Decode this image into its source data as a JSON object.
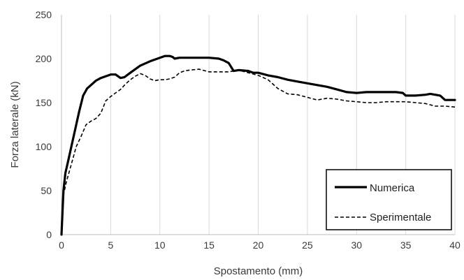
{
  "chart_data": {
    "type": "line",
    "xlabel": "Spostamento (mm)",
    "ylabel": "Forza laterale (kN)",
    "xlim": [
      0,
      40
    ],
    "ylim": [
      0,
      250
    ],
    "xticks": [
      "0",
      "5",
      "10",
      "15",
      "20",
      "25",
      "30",
      "35",
      "40"
    ],
    "yticks": [
      "0",
      "50",
      "100",
      "150",
      "200",
      "250"
    ],
    "grid": "vertical",
    "legend_position": "bottom-right",
    "series": [
      {
        "name": "Numerica",
        "style": "solid",
        "color": "#000000",
        "x": [
          0,
          0.2,
          0.4,
          0.7,
          1.0,
          1.4,
          1.8,
          2.2,
          2.6,
          3.0,
          3.5,
          4.0,
          4.5,
          5.0,
          5.5,
          6.0,
          6.4,
          7.0,
          7.5,
          8.0,
          9.0,
          10.0,
          10.5,
          11.0,
          11.3,
          11.5,
          12.0,
          13.0,
          14.0,
          15.0,
          16.0,
          16.5,
          17.0,
          17.5,
          18.0,
          19.0,
          19.5,
          20.0,
          21.0,
          22.0,
          23.0,
          24.0,
          25.0,
          26.0,
          27.0,
          28.0,
          29.0,
          30.0,
          31.0,
          32.0,
          33.0,
          34.0,
          34.7,
          35.0,
          36.0,
          37.0,
          37.5,
          38.0,
          38.5,
          39.0,
          40.0
        ],
        "y": [
          0,
          50,
          70,
          85,
          100,
          120,
          140,
          158,
          166,
          170,
          175,
          178,
          180,
          182,
          182,
          178,
          179,
          184,
          188,
          192,
          197,
          201,
          203,
          203,
          202,
          200,
          201,
          201,
          201,
          201,
          200,
          198,
          195,
          186,
          187,
          186,
          184,
          184,
          181,
          179,
          176,
          174,
          172,
          170,
          168,
          165,
          162,
          161,
          162,
          162,
          162,
          162,
          161,
          158,
          158,
          159,
          160,
          159,
          158,
          153,
          153
        ]
      },
      {
        "name": "Sperimentale",
        "style": "dashed",
        "color": "#000000",
        "x": [
          0,
          0.2,
          0.5,
          1.0,
          1.5,
          2.0,
          2.5,
          3.0,
          3.5,
          4.0,
          4.5,
          5.0,
          5.5,
          6.0,
          6.5,
          7.0,
          7.5,
          8.0,
          8.5,
          9.0,
          9.5,
          10.0,
          10.5,
          11.0,
          11.5,
          12.0,
          12.5,
          13.0,
          14.0,
          15.0,
          16.0,
          17.0,
          18.0,
          19.0,
          20.0,
          21.0,
          22.0,
          23.0,
          24.0,
          25.0,
          26.0,
          27.0,
          28.0,
          29.0,
          30.0,
          31.0,
          32.0,
          33.0,
          34.0,
          35.0,
          36.0,
          37.0,
          38.0,
          39.0,
          40.0
        ],
        "y": [
          0,
          45,
          60,
          80,
          100,
          112,
          125,
          129,
          132,
          138,
          152,
          157,
          161,
          165,
          171,
          176,
          180,
          183,
          181,
          177,
          175,
          176,
          176,
          177,
          179,
          184,
          186,
          187,
          188,
          185,
          185,
          185,
          187,
          184,
          181,
          176,
          166,
          160,
          159,
          156,
          153,
          155,
          154,
          152,
          151,
          150,
          150,
          151,
          151,
          151,
          150,
          149,
          146,
          146,
          145
        ]
      }
    ]
  }
}
